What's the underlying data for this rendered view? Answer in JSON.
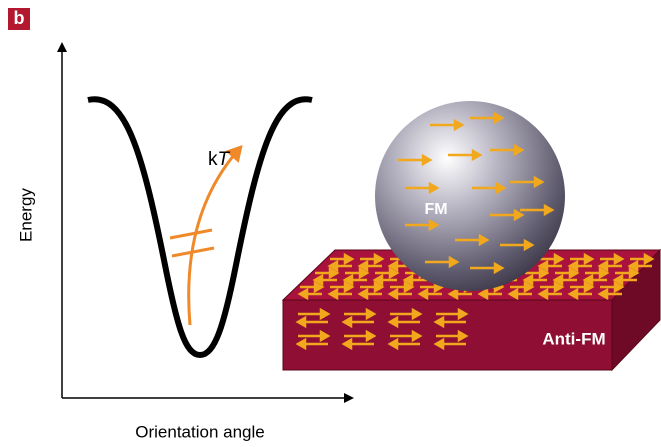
{
  "panel_label": "b",
  "axes": {
    "y_label": "Energy",
    "x_label": "Orientation angle"
  },
  "annotation": {
    "k": "k",
    "T": "T"
  },
  "particle": {
    "label": "FM"
  },
  "substrate": {
    "label": "Anti-FM"
  }
}
